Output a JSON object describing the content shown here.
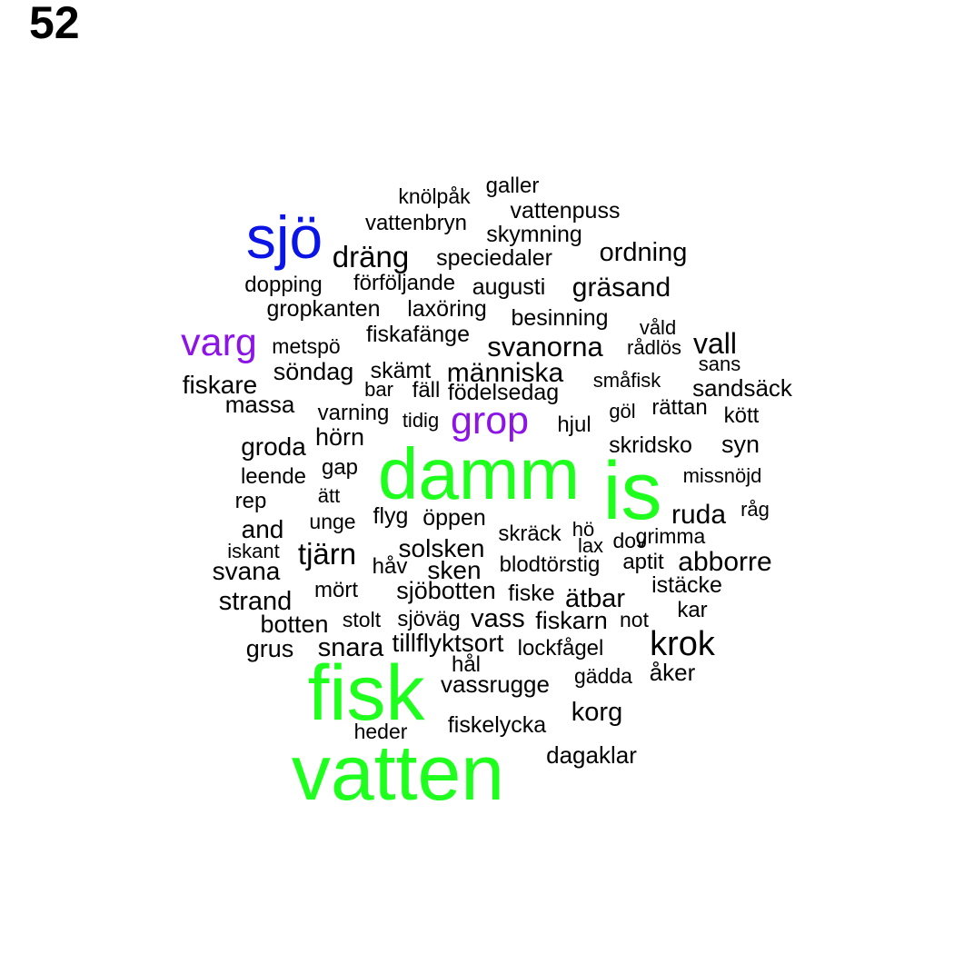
{
  "page_number": "52",
  "colors": {
    "default": "#000000",
    "green": "#1eff1e",
    "blue": "#0a14e6",
    "purple": "#8c14e6"
  },
  "words": [
    {
      "text": "knölpåk",
      "color": "default"
    },
    {
      "text": "galler",
      "color": "default"
    },
    {
      "text": "vattenpuss",
      "color": "default"
    },
    {
      "text": "vattenbryn",
      "color": "default"
    },
    {
      "text": "skymning",
      "color": "default"
    },
    {
      "text": "sjö",
      "color": "blue"
    },
    {
      "text": "dräng",
      "color": "default"
    },
    {
      "text": "speciedaler",
      "color": "default"
    },
    {
      "text": "ordning",
      "color": "default"
    },
    {
      "text": "dopping",
      "color": "default"
    },
    {
      "text": "förföljande",
      "color": "default"
    },
    {
      "text": "augusti",
      "color": "default"
    },
    {
      "text": "gräsand",
      "color": "default"
    },
    {
      "text": "gropkanten",
      "color": "default"
    },
    {
      "text": "laxöring",
      "color": "default"
    },
    {
      "text": "besinning",
      "color": "default"
    },
    {
      "text": "våld",
      "color": "default"
    },
    {
      "text": "varg",
      "color": "purple"
    },
    {
      "text": "metspö",
      "color": "default"
    },
    {
      "text": "fiskafänge",
      "color": "default"
    },
    {
      "text": "svanorna",
      "color": "default"
    },
    {
      "text": "rådlös",
      "color": "default"
    },
    {
      "text": "vall",
      "color": "default"
    },
    {
      "text": "sans",
      "color": "default"
    },
    {
      "text": "söndag",
      "color": "default"
    },
    {
      "text": "skämt",
      "color": "default"
    },
    {
      "text": "människa",
      "color": "default"
    },
    {
      "text": "fiskare",
      "color": "default"
    },
    {
      "text": "bar",
      "color": "default"
    },
    {
      "text": "fäll",
      "color": "default"
    },
    {
      "text": "födelsedag",
      "color": "default"
    },
    {
      "text": "småfisk",
      "color": "default"
    },
    {
      "text": "sandsäck",
      "color": "default"
    },
    {
      "text": "massa",
      "color": "default"
    },
    {
      "text": "varning",
      "color": "default"
    },
    {
      "text": "tidig",
      "color": "default"
    },
    {
      "text": "grop",
      "color": "purple"
    },
    {
      "text": "hjul",
      "color": "default"
    },
    {
      "text": "göl",
      "color": "default"
    },
    {
      "text": "rättan",
      "color": "default"
    },
    {
      "text": "kött",
      "color": "default"
    },
    {
      "text": "groda",
      "color": "default"
    },
    {
      "text": "hörn",
      "color": "default"
    },
    {
      "text": "skridsko",
      "color": "default"
    },
    {
      "text": "syn",
      "color": "default"
    },
    {
      "text": "leende",
      "color": "default"
    },
    {
      "text": "gap",
      "color": "default"
    },
    {
      "text": "damm",
      "color": "green"
    },
    {
      "text": "is",
      "color": "green"
    },
    {
      "text": "missnöjd",
      "color": "default"
    },
    {
      "text": "rep",
      "color": "default"
    },
    {
      "text": "ätt",
      "color": "default"
    },
    {
      "text": "råg",
      "color": "default"
    },
    {
      "text": "flyg",
      "color": "default"
    },
    {
      "text": "öppen",
      "color": "default"
    },
    {
      "text": "ruda",
      "color": "default"
    },
    {
      "text": "and",
      "color": "default"
    },
    {
      "text": "unge",
      "color": "default"
    },
    {
      "text": "skräck",
      "color": "default"
    },
    {
      "text": "hö",
      "color": "default"
    },
    {
      "text": "grimma",
      "color": "default"
    },
    {
      "text": "iskant",
      "color": "default"
    },
    {
      "text": "tjärn",
      "color": "default"
    },
    {
      "text": "solsken",
      "color": "default"
    },
    {
      "text": "lax",
      "color": "default"
    },
    {
      "text": "dov",
      "color": "default"
    },
    {
      "text": "abborre",
      "color": "default"
    },
    {
      "text": "svana",
      "color": "default"
    },
    {
      "text": "håv",
      "color": "default"
    },
    {
      "text": "sken",
      "color": "default"
    },
    {
      "text": "blodtörstig",
      "color": "default"
    },
    {
      "text": "aptit",
      "color": "default"
    },
    {
      "text": "istäcke",
      "color": "default"
    },
    {
      "text": "strand",
      "color": "default"
    },
    {
      "text": "mört",
      "color": "default"
    },
    {
      "text": "sjöbotten",
      "color": "default"
    },
    {
      "text": "fiske",
      "color": "default"
    },
    {
      "text": "ätbar",
      "color": "default"
    },
    {
      "text": "kar",
      "color": "default"
    },
    {
      "text": "botten",
      "color": "default"
    },
    {
      "text": "stolt",
      "color": "default"
    },
    {
      "text": "sjöväg",
      "color": "default"
    },
    {
      "text": "vass",
      "color": "default"
    },
    {
      "text": "fiskarn",
      "color": "default"
    },
    {
      "text": "not",
      "color": "default"
    },
    {
      "text": "grus",
      "color": "default"
    },
    {
      "text": "snara",
      "color": "default"
    },
    {
      "text": "tillflyktsort",
      "color": "default"
    },
    {
      "text": "lockfågel",
      "color": "default"
    },
    {
      "text": "krok",
      "color": "default"
    },
    {
      "text": "hål",
      "color": "default"
    },
    {
      "text": "fisk",
      "color": "green"
    },
    {
      "text": "vassrugge",
      "color": "default"
    },
    {
      "text": "gädda",
      "color": "default"
    },
    {
      "text": "åker",
      "color": "default"
    },
    {
      "text": "korg",
      "color": "default"
    },
    {
      "text": "heder",
      "color": "default"
    },
    {
      "text": "fiskelycka",
      "color": "default"
    },
    {
      "text": "dagaklar",
      "color": "default"
    },
    {
      "text": "vatten",
      "color": "green"
    }
  ]
}
